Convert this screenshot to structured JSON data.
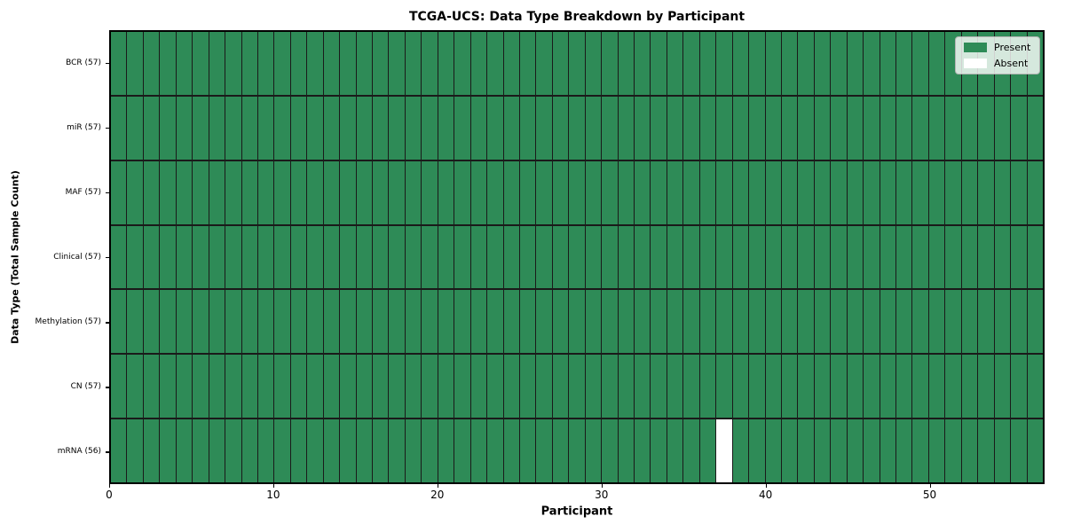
{
  "chart_data": {
    "type": "heatmap",
    "title": "TCGA-UCS: Data Type Breakdown by Participant",
    "xlabel": "Participant",
    "ylabel": "Data Type (Total Sample Count)",
    "x_range": [
      0,
      57
    ],
    "x_ticks": [
      0,
      10,
      20,
      30,
      40,
      50
    ],
    "n_participants": 57,
    "cell_states": {
      "present": "Present",
      "absent": "Absent"
    },
    "rows": [
      {
        "label": "BCR (57)",
        "data_type": "BCR",
        "total_samples": 57,
        "absent_participants": []
      },
      {
        "label": "miR (57)",
        "data_type": "miR",
        "total_samples": 57,
        "absent_participants": []
      },
      {
        "label": "MAF (57)",
        "data_type": "MAF",
        "total_samples": 57,
        "absent_participants": []
      },
      {
        "label": "Clinical (57)",
        "data_type": "Clinical",
        "total_samples": 57,
        "absent_participants": []
      },
      {
        "label": "Methylation (57)",
        "data_type": "Methylation",
        "total_samples": 57,
        "absent_participants": []
      },
      {
        "label": "CN (57)",
        "data_type": "CN",
        "total_samples": 57,
        "absent_participants": []
      },
      {
        "label": "mRNA (56)",
        "data_type": "mRNA",
        "total_samples": 56,
        "absent_participants": [
          37
        ]
      }
    ],
    "legend": [
      {
        "label": "Present",
        "color": "#2e8b57"
      },
      {
        "label": "Absent",
        "color": "#ffffff"
      }
    ],
    "legend_position": "upper right",
    "colors": {
      "present": "#2e8b57",
      "absent": "#ffffff",
      "cell_edge": "#1a1a1a",
      "spine": "#000000"
    }
  }
}
